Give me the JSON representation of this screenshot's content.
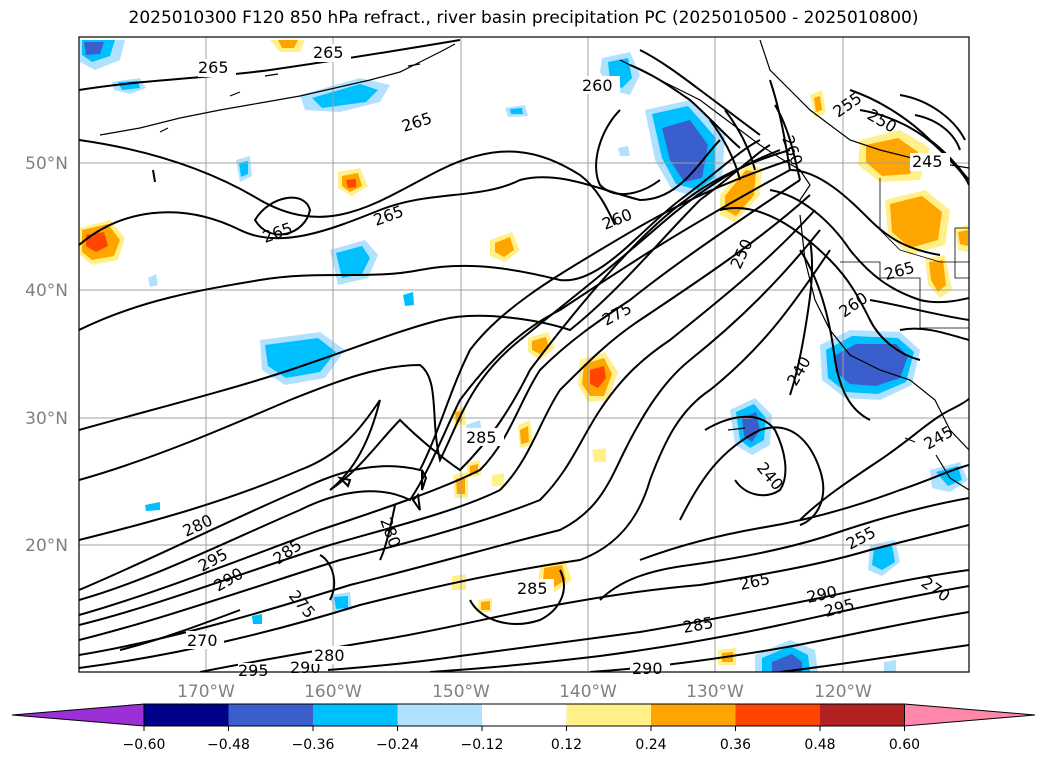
{
  "title": "2025010300 F120 850 hPa refract., river basin precipitation PC (2025010500 - 2025010800)",
  "latitude_labels": [
    "50°N",
    "40°N",
    "30°N",
    "20°N"
  ],
  "longitude_labels": [
    "170°W",
    "160°W",
    "150°W",
    "140°W",
    "130°W",
    "120°W"
  ],
  "contour_labels": [
    "265",
    "265",
    "265",
    "265",
    "265",
    "260",
    "260",
    "255",
    "250",
    "245",
    "260",
    "250",
    "265",
    "260",
    "275",
    "240",
    "285",
    "240",
    "245",
    "280",
    "280",
    "295",
    "285",
    "290",
    "275",
    "285",
    "255",
    "265",
    "290",
    "295",
    "270",
    "285",
    "270",
    "295",
    "290",
    "280",
    "290"
  ],
  "colorbar": {
    "tick_labels": [
      "−0.60",
      "−0.48",
      "−0.36",
      "−0.24",
      "−0.12",
      "0.12",
      "0.24",
      "0.36",
      "0.48",
      "0.60"
    ],
    "colors": [
      "#9b30d6",
      "#00008b",
      "#3a5fcd",
      "#00bfff",
      "#b0e2ff",
      "#ffffff",
      "#fff08a",
      "#ffa500",
      "#ff4500",
      "#b22222",
      "#ff88aa"
    ]
  },
  "colors": {
    "negative_light": "#b0e2ff",
    "negative_mid": "#00bfff",
    "negative_strong": "#3a5fcd",
    "positive_light": "#fff08a",
    "positive_mid": "#ffa500",
    "positive_strong": "#ff4500",
    "contour": "#000000",
    "grid": "#a0a0a0"
  }
}
